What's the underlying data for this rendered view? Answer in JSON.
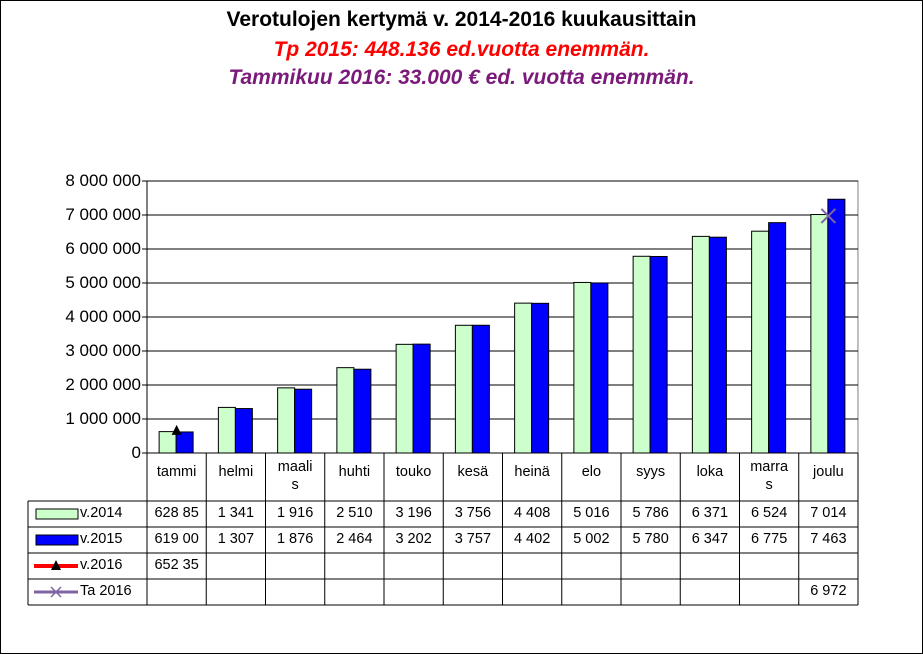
{
  "title": "Verotulojen kertymä v. 2014-2016  kuukausittain",
  "subtitle1": "Tp 2015: 448.136 ed.vuotta enemmän.",
  "subtitle2": "Tammikuu 2016: 33.000 € ed. vuotta enemmän.",
  "colors": {
    "v2014": "#ccffcc",
    "v2015": "#0000ff",
    "v2016": "#ff0000",
    "ta2016": "#8064a2",
    "subtitle1": "#ff0000",
    "subtitle2": "#7a1a7a"
  },
  "chart_data": {
    "type": "bar",
    "categories": [
      "tammi",
      "helmi",
      "maalis",
      "huhti",
      "touko",
      "kesä",
      "heinä",
      "elo",
      "syys",
      "loka",
      "marras",
      "joulu"
    ],
    "category_labels": [
      "tammi",
      "helmi",
      "maali\ns",
      "huhti",
      "touko",
      "kesä",
      "heinä",
      "elo",
      "syys",
      "loka",
      "marra\ns",
      "joulu"
    ],
    "ylim": [
      0,
      8000000
    ],
    "yticks": [
      "0",
      "1 000 000",
      "2 000 000",
      "3 000 000",
      "4 000 000",
      "5 000 000",
      "6 000 000",
      "7 000 000",
      "8 000 000"
    ],
    "grid": true,
    "legend": "data-table",
    "series": [
      {
        "name": "v.2014",
        "kind": "bar",
        "values": [
          628850,
          1341000,
          1916000,
          2510000,
          3196000,
          3756000,
          4408000,
          5016000,
          5786000,
          6371000,
          6524000,
          7014000
        ],
        "table": [
          "628 85",
          "1 341",
          "1 916",
          "2 510",
          "3 196",
          "3 756",
          "4 408",
          "5 016",
          "5 786",
          "6 371",
          "6 524",
          "7 014"
        ]
      },
      {
        "name": "v.2015",
        "kind": "bar",
        "values": [
          619000,
          1307000,
          1876000,
          2464000,
          3202000,
          3757000,
          4402000,
          5002000,
          5780000,
          6347000,
          6775000,
          7463000
        ],
        "table": [
          "619 00",
          "1 307",
          "1 876",
          "2 464",
          "3 202",
          "3 757",
          "4 402",
          "5 002",
          "5 780",
          "6 347",
          "6 775",
          "7 463"
        ]
      },
      {
        "name": "v.2016",
        "kind": "line",
        "values": [
          652350,
          null,
          null,
          null,
          null,
          null,
          null,
          null,
          null,
          null,
          null,
          null
        ],
        "table": [
          "652 35",
          "",
          "",
          "",
          "",
          "",
          "",
          "",
          "",
          "",
          "",
          ""
        ]
      },
      {
        "name": "Ta 2016",
        "kind": "marker",
        "values": [
          null,
          null,
          null,
          null,
          null,
          null,
          null,
          null,
          null,
          null,
          null,
          6972000
        ],
        "table": [
          "",
          "",
          "",
          "",
          "",
          "",
          "",
          "",
          "",
          "",
          "",
          "6 972"
        ]
      }
    ]
  }
}
